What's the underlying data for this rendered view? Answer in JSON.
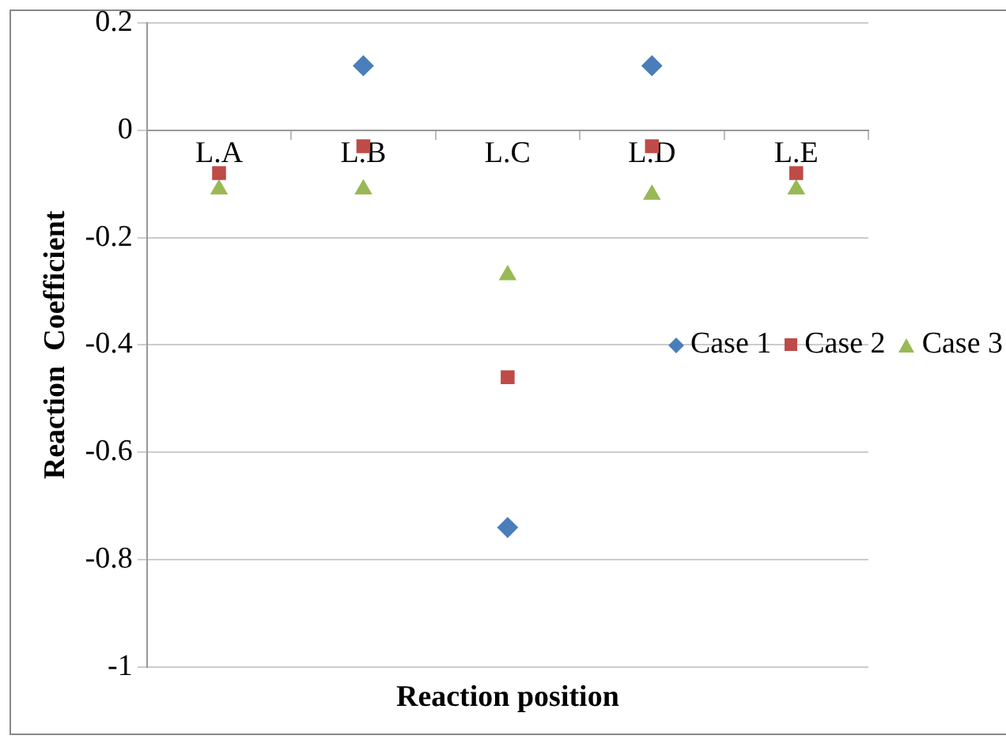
{
  "chart_data": {
    "type": "scatter",
    "xlabel": "Reaction position",
    "ylabel": "Reaction  Coefficient",
    "categories": [
      "L.A",
      "L.B",
      "L.C",
      "L.D",
      "L.E"
    ],
    "series": [
      {
        "name": "Case 1",
        "color": "#4a7ebb",
        "marker": "diamond",
        "values": [
          null,
          0.12,
          -0.74,
          0.12,
          null
        ]
      },
      {
        "name": "Case 2",
        "color": "#be4b48",
        "marker": "square",
        "values": [
          -0.08,
          -0.03,
          -0.46,
          -0.03,
          -0.08
        ]
      },
      {
        "name": "Case 3",
        "color": "#98b954",
        "marker": "triangle",
        "values": [
          -0.11,
          -0.11,
          -0.27,
          -0.12,
          -0.11
        ]
      }
    ],
    "ylim": [
      -1,
      0.2
    ],
    "yticks": [
      -1,
      -0.8,
      -0.6,
      -0.4,
      -0.2,
      0,
      0.2
    ],
    "grid": "y",
    "legend": "right"
  }
}
